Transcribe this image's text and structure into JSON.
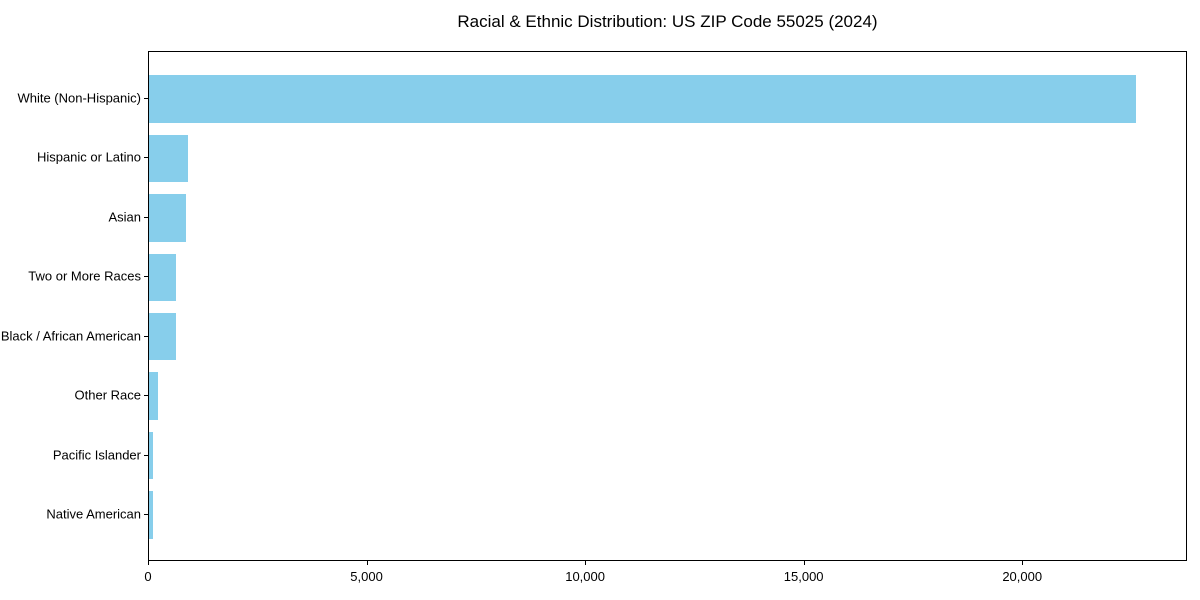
{
  "chart_data": {
    "type": "bar",
    "orientation": "horizontal",
    "title": "Racial & Ethnic Distribution: US ZIP Code 55025 (2024)",
    "categories": [
      "White (Non-Hispanic)",
      "Hispanic or Latino",
      "Asian",
      "Two or More Races",
      "Black / African American",
      "Other Race",
      "Pacific Islander",
      "Native American"
    ],
    "values": [
      22630,
      900,
      855,
      625,
      615,
      205,
      95,
      85
    ],
    "xlabel": "",
    "ylabel": "",
    "xlim": [
      0,
      23770
    ],
    "x_ticks": [
      0,
      5000,
      10000,
      15000,
      20000
    ],
    "x_tick_labels": [
      "0",
      "5,000",
      "10,000",
      "15,000",
      "20,000"
    ],
    "bar_color": "#87CEEB",
    "axis_color": "#000000",
    "grid": false,
    "legend": "none"
  }
}
